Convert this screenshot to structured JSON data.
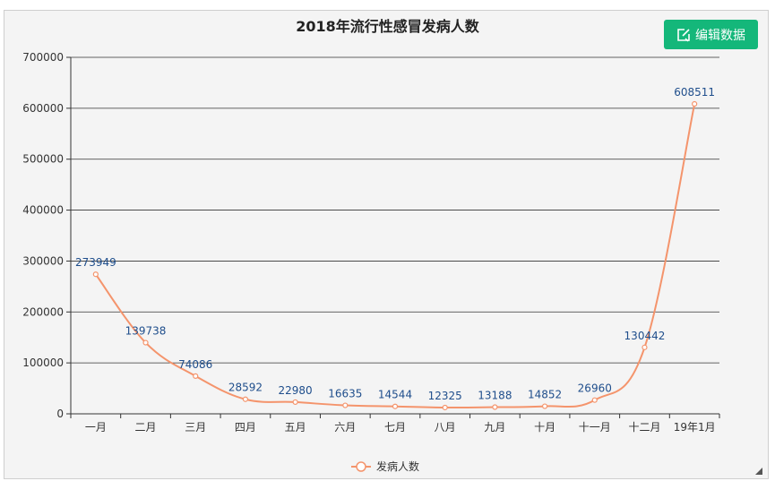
{
  "edit_button": {
    "label": "编辑数据",
    "icon": "edit-icon"
  },
  "colors": {
    "line": "#f4946c",
    "label": "#1f4e8c",
    "button": "#14b77a",
    "grid": "#333333"
  },
  "chart_data": {
    "type": "line",
    "title": "2018年流行性感冒发病人数",
    "categories": [
      "一月",
      "二月",
      "三月",
      "四月",
      "五月",
      "六月",
      "七月",
      "八月",
      "九月",
      "十月",
      "十一月",
      "十二月",
      "19年1月"
    ],
    "series": [
      {
        "name": "发病人数",
        "values": [
          273949,
          139738,
          74086,
          28592,
          22980,
          16635,
          14544,
          12325,
          13188,
          14852,
          26960,
          130442,
          608511
        ]
      }
    ],
    "ylim": [
      0,
      700000
    ],
    "yticks": [
      0,
      100000,
      200000,
      300000,
      400000,
      500000,
      600000,
      700000
    ],
    "grid": true,
    "legend": "bottom-center",
    "data_labels": true
  }
}
